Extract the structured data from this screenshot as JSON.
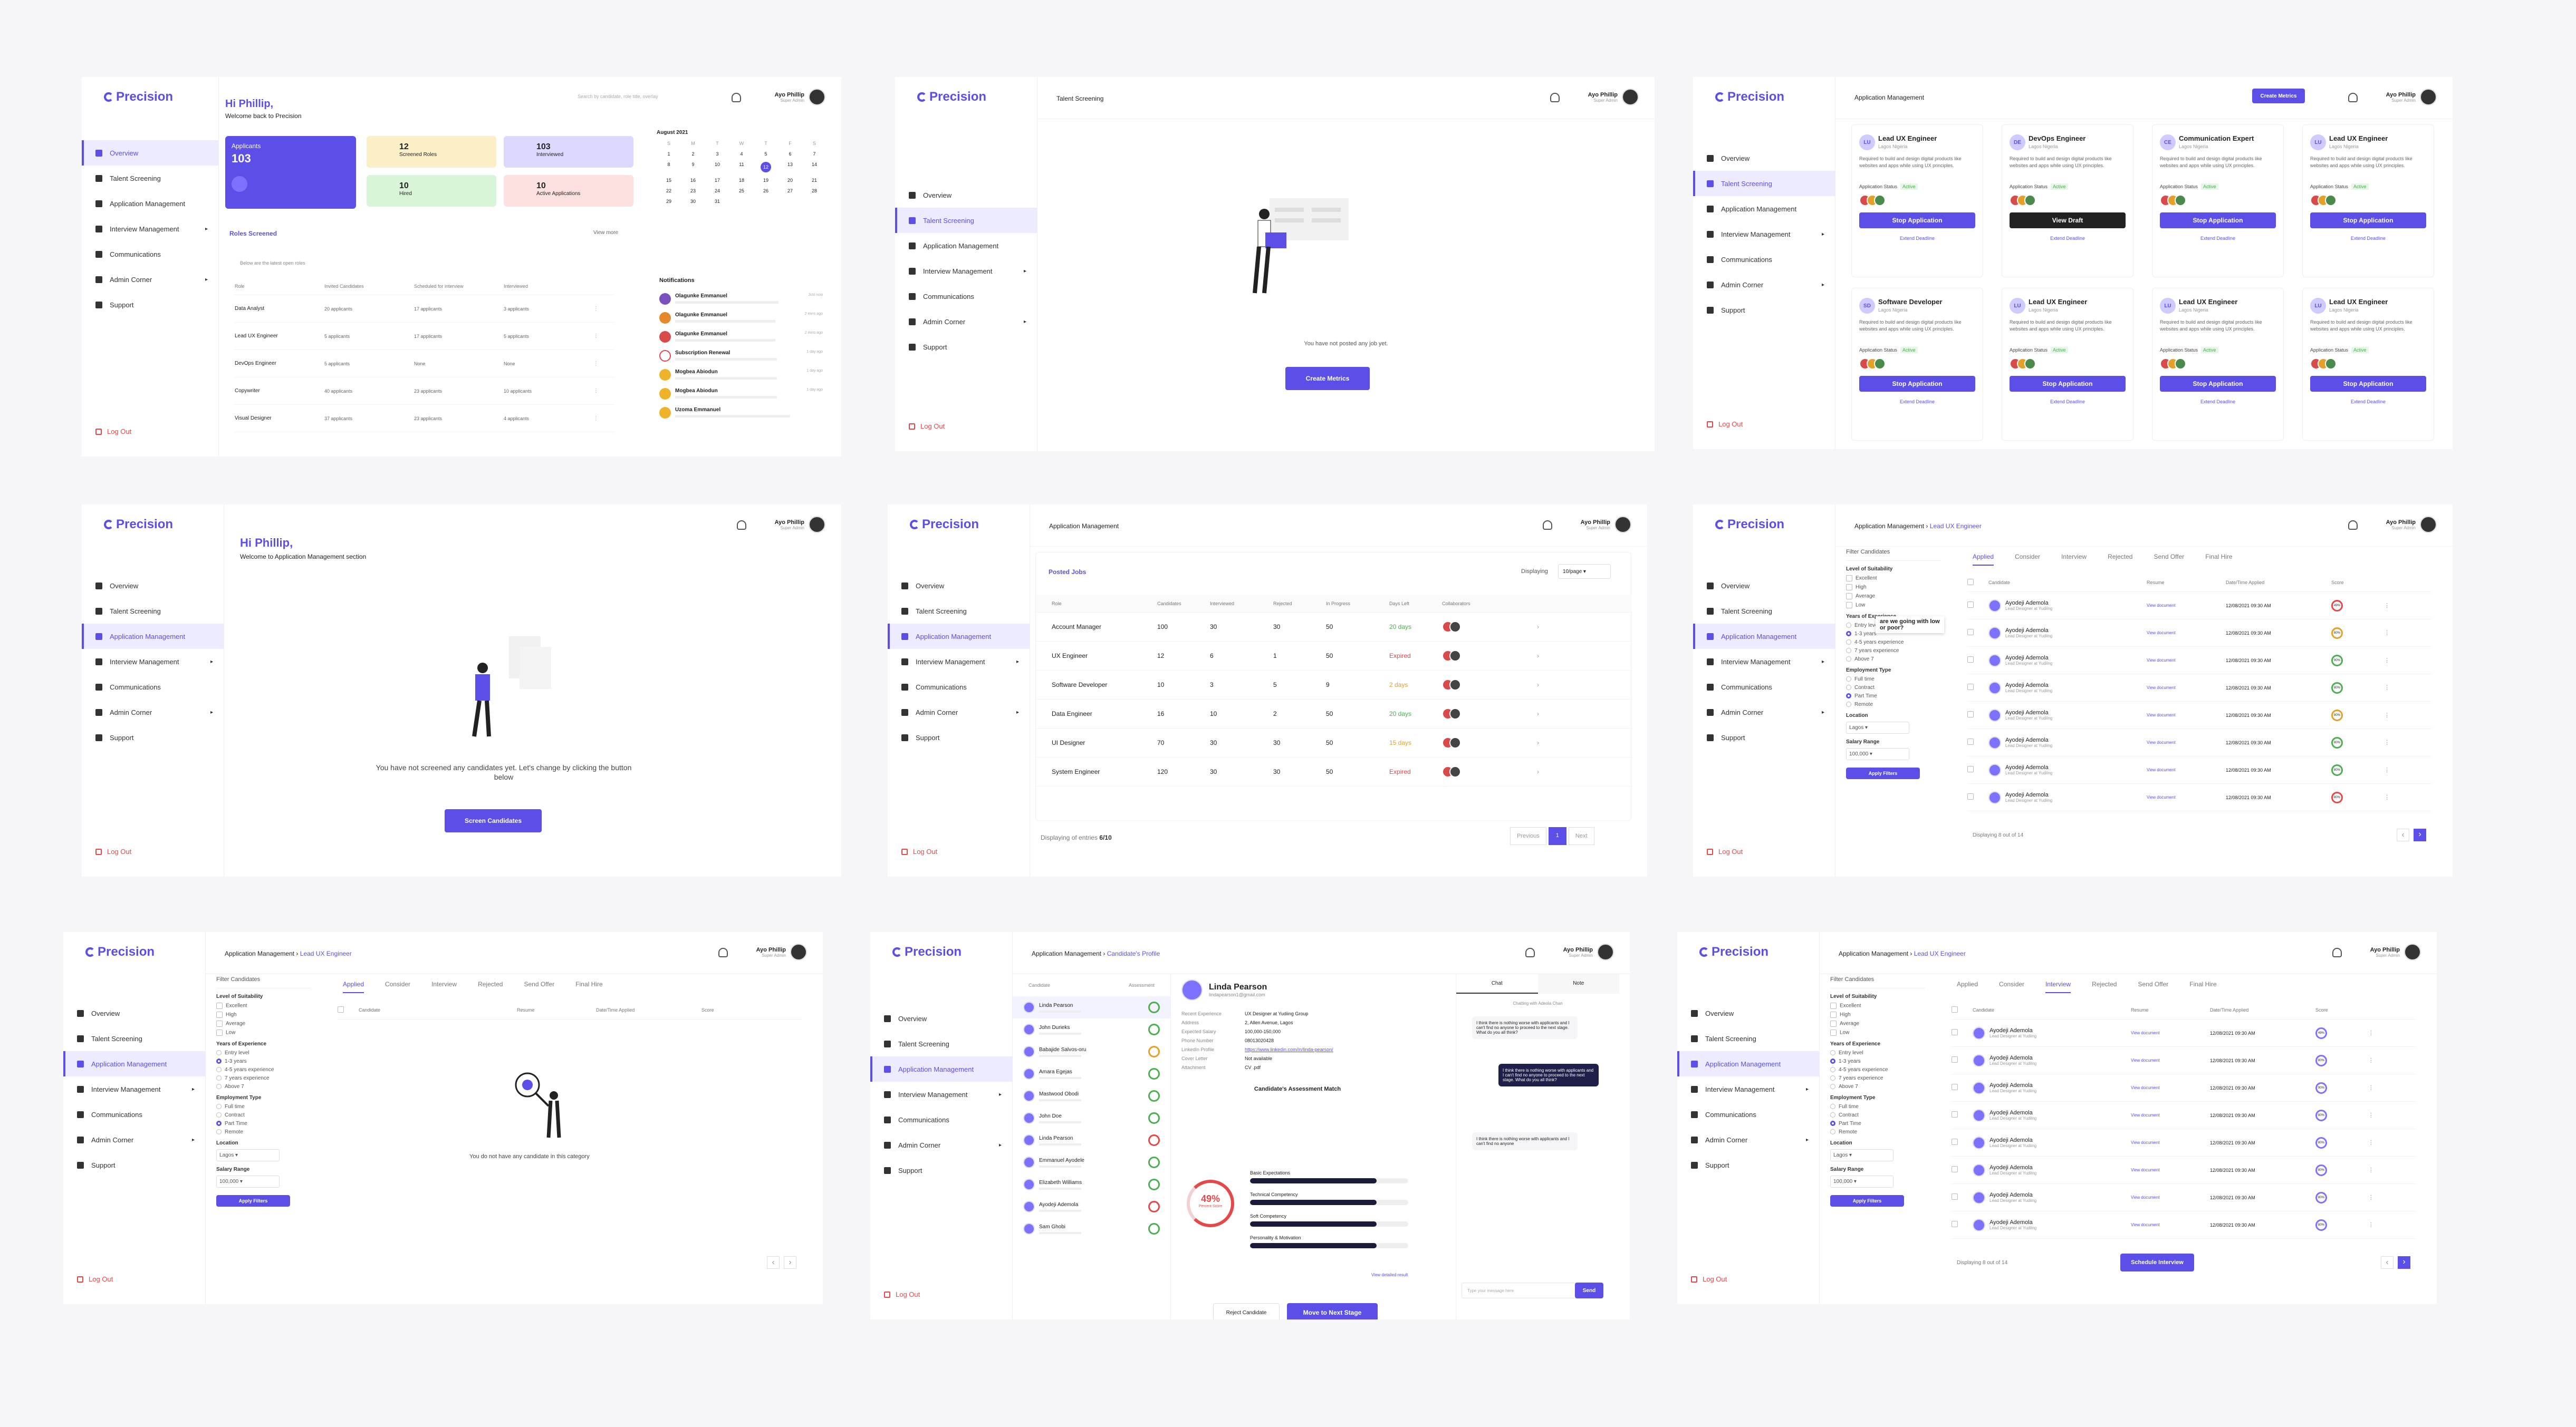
{
  "brand": "Precision",
  "nav": [
    "Overview",
    "Talent Screening",
    "Application Management",
    "Interview Management",
    "Communications",
    "Admin Corner",
    "Support"
  ],
  "logout": "Log Out",
  "user": {
    "name": "Ayo Phillip",
    "role": "Super Admin"
  },
  "s1": {
    "greet": "Hi Phillip,",
    "welcome": "Welcome back to Precision",
    "search": "Search by candidate, role title, overlay",
    "applicants_label": "Applicants",
    "applicants_value": "103",
    "stats": [
      {
        "value": "12",
        "label": "Screened Roles"
      },
      {
        "value": "103",
        "label": "Interviewed"
      },
      {
        "value": "10",
        "label": "Hired"
      },
      {
        "value": "10",
        "label": "Active Applications"
      }
    ],
    "roles_title": "Roles Screened",
    "view_more": "View more",
    "roles_sub": "Below are the latest open roles",
    "cols": [
      "Role",
      "Invited Candidates",
      "Scheduled for interview",
      "Interviewed"
    ],
    "rows": [
      [
        "Data Analyst",
        "20 applicants",
        "17 applicants",
        "3 applicants"
      ],
      [
        "Lead UX Engineer",
        "5 applicants",
        "17 applicants",
        "5 applicants"
      ],
      [
        "DevOps Engineer",
        "5 applicants",
        "None",
        "None"
      ],
      [
        "Copywriter",
        "40 applicants",
        "23 applicants",
        "10 applicants"
      ],
      [
        "Visual Designer",
        "37 applicants",
        "23 applicants",
        "4 applicants"
      ]
    ],
    "cal_month": "August 2021",
    "days": [
      "S",
      "M",
      "T",
      "W",
      "T",
      "F",
      "S"
    ],
    "dates": [
      "1",
      "2",
      "3",
      "4",
      "5",
      "6",
      "7",
      "8",
      "9",
      "10",
      "11",
      "12",
      "13",
      "14",
      "15",
      "16",
      "17",
      "18",
      "19",
      "20",
      "21",
      "22",
      "23",
      "24",
      "25",
      "26",
      "27",
      "28",
      "29",
      "30",
      "31"
    ],
    "notif_title": "Notifications",
    "notifs": [
      [
        "Olagunke Emmanuel",
        "Just now"
      ],
      [
        "Olagunke Emmanuel",
        "2 mins ago"
      ],
      [
        "Olagunke Emmanuel",
        "2 mins ago"
      ],
      [
        "Subscription Renewal",
        "1 day ago"
      ],
      [
        "Mogbea Abiodun",
        "1 day ago"
      ],
      [
        "Mogbea Abiodun",
        "1 day ago"
      ],
      [
        "Uzoma Emmanuel",
        ""
      ]
    ]
  },
  "s2": {
    "title": "Talent Screening",
    "empty": "You have not posted any job yet.",
    "cta": "Create Metrics"
  },
  "s3": {
    "title": "Application Management",
    "cta": "Create Metrics",
    "cards": [
      [
        "LU",
        "Lead UX Engineer",
        "Stop Application"
      ],
      [
        "DE",
        "DevOps Engineer",
        "View Draft"
      ],
      [
        "CE",
        "Communication Expert",
        "Stop Application"
      ],
      [
        "LU",
        "Lead UX Engineer",
        "Stop Application"
      ],
      [
        "SD",
        "Software Developer",
        "Stop Application"
      ],
      [
        "LU",
        "Lead UX Engineer",
        "Stop Application"
      ],
      [
        "LU",
        "Lead UX Engineer",
        "Stop Application"
      ],
      [
        "LU",
        "Lead UX Engineer",
        "Stop Application"
      ]
    ],
    "loc": "Lagos Nigeria",
    "desc": "Required to build and design digital products like websites and apps while using UX principles.",
    "status_label": "Application Status",
    "status": "Active",
    "extend": "Extend Deadline"
  },
  "s4": {
    "greet": "Hi Phillip,",
    "welcome": "Welcome to Application Management section",
    "empty": "You have not screened any candidates yet. Let's change by clicking the button below",
    "cta": "Screen Candidates"
  },
  "s5": {
    "title": "Application Management",
    "posted": "Posted Jobs",
    "displaying": "Displaying",
    "per": "10/page",
    "cols": [
      "Role",
      "Candidates",
      "Interviewed",
      "Rejected",
      "In Progress",
      "Days Left",
      "Collaborators"
    ],
    "rows": [
      [
        "Account Manager",
        "100",
        "30",
        "30",
        "50",
        "20 days"
      ],
      [
        "UX Engineer",
        "12",
        "6",
        "1",
        "50",
        "Expired"
      ],
      [
        "Software Developer",
        "10",
        "3",
        "5",
        "9",
        "2 days"
      ],
      [
        "Data Engineer",
        "16",
        "10",
        "2",
        "50",
        "20 days"
      ],
      [
        "UI Designer",
        "70",
        "30",
        "30",
        "50",
        "15 days"
      ],
      [
        "System Engineer",
        "120",
        "30",
        "30",
        "50",
        "Expired"
      ]
    ],
    "footer": "Displaying of entries",
    "count": "6/10",
    "prev": "Previous",
    "page": "1",
    "next": "Next"
  },
  "s6": {
    "title": "Application Management",
    "crumb": "Lead UX Engineer",
    "filter": "Filter Candidates",
    "tabs": [
      "Applied",
      "Consider",
      "Interview",
      "Rejected",
      "Send Offer",
      "Final Hire"
    ],
    "cols": [
      "Candidate",
      "Resume",
      "Date/Time Applied",
      "Score"
    ],
    "cand": "Ayodeji Ademola",
    "crole": "Lead Designer at Yudiing",
    "resume": "View document",
    "date": "12/08/2021  09:30 AM",
    "scores": [
      "49%",
      "80%",
      "90%",
      "80%",
      "80%",
      "80%",
      "80%",
      "80%"
    ],
    "tooltip": "are we going with low or poor?",
    "suit": "Level of Suitability",
    "suitopts": [
      "Excellent",
      "High",
      "Average",
      "Low"
    ],
    "exp": "Years of Experience",
    "expopts": [
      "Entry level",
      "1-3 years",
      "4-5 years experience",
      "7 years experience",
      "Above 7"
    ],
    "emp": "Employment Type",
    "empopts": [
      "Full time",
      "Contract",
      "Part Time",
      "Remote"
    ],
    "location": "Location",
    "locval": "Lagos",
    "salary": "Salary Range",
    "salval": "100,000",
    "apply": "Apply Filters",
    "showing": "Displaying 8 out of 14"
  },
  "s7": {
    "empty": "You do not have any candidate in this category"
  },
  "s8": {
    "crumb": "Candidate's Profile",
    "name": "Linda Pearson",
    "email": "lindapearson1@gmail.com",
    "fields": [
      [
        "Recent Experience",
        "UX Designer at Yudiing Group"
      ],
      [
        "Address",
        "2, Allen Avenue, Lagos"
      ],
      [
        "Expected Salary",
        "100,000-150,000"
      ],
      [
        "Phone Number",
        "08013020428"
      ],
      [
        "LinkedIn Profile",
        "https://www.linkedin.com/in/linda-pearson/"
      ],
      [
        "Cover Letter",
        "Not available"
      ],
      [
        "Attachment",
        "CV .pdf"
      ]
    ],
    "assess": "Candidate's Assessment Match",
    "pct": "49%",
    "pctlbl": "Percent Score",
    "skills": [
      [
        "Basic Expectations",
        0.8
      ],
      [
        "Technical Competency",
        0.8
      ],
      [
        "Soft Competency",
        0.8
      ],
      [
        "Personality & Motivation",
        0.8
      ]
    ],
    "view_det": "View detailed result",
    "reject": "Reject Candidate",
    "move": "Move to Next Stage",
    "chat": "Chat",
    "note": "Note",
    "chatting": "Chatting with Adeola Chan",
    "msgs": [
      "I think there is nothing worse with applicants and I can't find no anyone to proceed to the next stage. What do you all think?",
      "I think there is nothing worse with applicants and I can't find no anyone to proceed to the next stage. What do you all think?",
      "I think there is nothing worse with applicants and I can't find no anyone"
    ],
    "msgph": "Type your message here",
    "send": "Send",
    "list": [
      "Linda Pearson",
      "John Durieks",
      "Babajide Salvos-oru",
      "Amara Egejas",
      "Mastwood Obodi",
      "John Doe",
      "Linda Pearson",
      "Emmanuel Ayodele",
      "Elizabeth Williams",
      "Ayodeji Ademola",
      "Sam Ghobi"
    ],
    "listcols": [
      "Candidate",
      "Assessment"
    ]
  },
  "s9": {
    "schedule": "Schedule Interview"
  }
}
